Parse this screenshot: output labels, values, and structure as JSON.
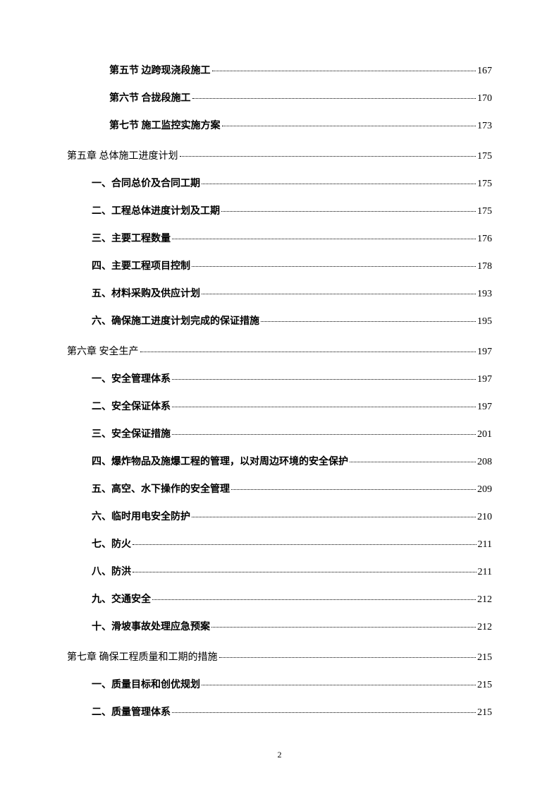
{
  "entries": [
    {
      "level": 2,
      "label": "第五节    边跨现浇段施工",
      "page": "167",
      "bold": true
    },
    {
      "level": 2,
      "label": "第六节    合拢段施工",
      "page": "170",
      "bold": true
    },
    {
      "level": 2,
      "label": "第七节    施工监控实施方案",
      "page": "173",
      "bold": true
    },
    {
      "level": 1,
      "label": "第五章   总体施工进度计划",
      "page": "175",
      "bold": false
    },
    {
      "level": 3,
      "label": "一、合同总价及合同工期",
      "page": "175",
      "bold": true
    },
    {
      "level": 3,
      "label": "二、工程总体进度计划及工期",
      "page": "175",
      "bold": true
    },
    {
      "level": 3,
      "label": "三、主要工程数量",
      "page": "176",
      "bold": true
    },
    {
      "level": 3,
      "label": "四、主要工程项目控制",
      "page": "178",
      "bold": true
    },
    {
      "level": 3,
      "label": "五、材料采购及供应计划",
      "page": "193",
      "bold": true
    },
    {
      "level": 3,
      "label": "六、确保施工进度计划完成的保证措施",
      "page": "195",
      "bold": true
    },
    {
      "level": 1,
      "label": "第六章   安全生产",
      "page": "197",
      "bold": false
    },
    {
      "level": 3,
      "label": "一、安全管理体系",
      "page": "197",
      "bold": true
    },
    {
      "level": 3,
      "label": "二、安全保证体系",
      "page": "197",
      "bold": true
    },
    {
      "level": 3,
      "label": "三、安全保证措施",
      "page": "201",
      "bold": true
    },
    {
      "level": 3,
      "label": "四、爆炸物品及施爆工程的管理，以对周边环境的安全保护",
      "page": "208",
      "bold": true
    },
    {
      "level": 3,
      "label": "五、高空、水下操作的安全管理",
      "page": "209",
      "bold": true
    },
    {
      "level": 3,
      "label": "六、临时用电安全防护",
      "page": "210",
      "bold": true
    },
    {
      "level": 3,
      "label": "七、防火",
      "page": "211",
      "bold": true
    },
    {
      "level": 3,
      "label": "八、防洪",
      "page": "211",
      "bold": true
    },
    {
      "level": 3,
      "label": "九、交通安全",
      "page": "212",
      "bold": true
    },
    {
      "level": 3,
      "label": "十、滑坡事故处理应急预案",
      "page": "212",
      "bold": true
    },
    {
      "level": 1,
      "label": "第七章   确保工程质量和工期的措施",
      "page": "215",
      "bold": false
    },
    {
      "level": 3,
      "label": "一、质量目标和创优规划",
      "page": "215",
      "bold": true
    },
    {
      "level": 3,
      "label": "二、质量管理体系",
      "page": "215",
      "bold": true
    }
  ],
  "pageNumber": "2"
}
